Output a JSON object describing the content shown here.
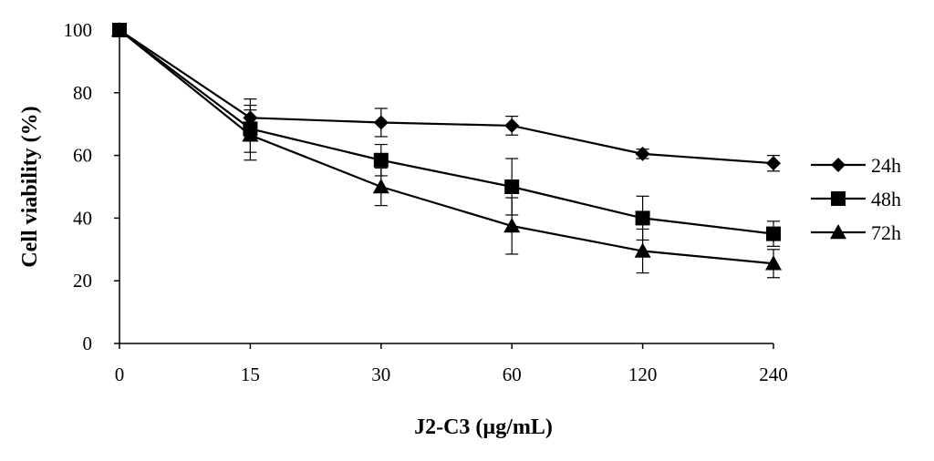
{
  "chart_data": {
    "type": "line",
    "title": "",
    "xlabel": "J2-C3 (µg/mL)",
    "ylabel": "Cell viability (%)",
    "categories": [
      "0",
      "15",
      "30",
      "60",
      "120",
      "240"
    ],
    "ylim": [
      0,
      100
    ],
    "yticks": [
      "0",
      "20",
      "40",
      "60",
      "80",
      "100"
    ],
    "legend_position": "right",
    "grid": false,
    "series": [
      {
        "name": "24h",
        "marker": "diamond",
        "values": [
          100,
          72,
          70.5,
          69.5,
          60.5,
          57.5
        ],
        "errors": [
          0,
          6,
          4.5,
          3,
          1.5,
          2.5
        ]
      },
      {
        "name": "48h",
        "marker": "square",
        "values": [
          100,
          68.5,
          58.5,
          50,
          40,
          35
        ],
        "errors": [
          0,
          7.5,
          5,
          9,
          7,
          4
        ]
      },
      {
        "name": "72h",
        "marker": "triangle",
        "values": [
          100,
          66.5,
          50,
          37.5,
          29.5,
          25.5
        ],
        "errors": [
          0,
          8,
          6,
          9,
          7,
          4.5
        ]
      }
    ],
    "colors": {
      "line": "#000000",
      "marker": "#000000"
    }
  }
}
